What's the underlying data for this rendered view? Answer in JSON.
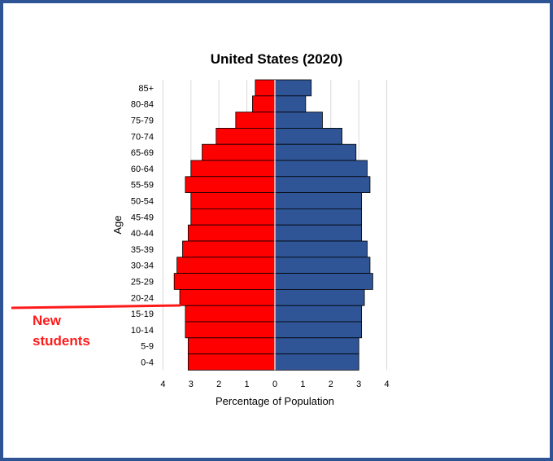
{
  "chart_data": {
    "type": "bar",
    "orientation": "horizontal",
    "title": "United States (2020)",
    "xlabel": "Percentage of Population",
    "ylabel": "Age",
    "xlim": [
      -4,
      4
    ],
    "xtick_labels": [
      "4",
      "3",
      "2",
      "1",
      "0",
      "1",
      "2",
      "3",
      "4"
    ],
    "grid": true,
    "categories": [
      "85+",
      "80-84",
      "75-79",
      "70-74",
      "65-69",
      "60-64",
      "55-59",
      "50-54",
      "45-49",
      "40-44",
      "35-39",
      "30-34",
      "25-29",
      "20-24",
      "15-19",
      "10-14",
      "5-9",
      "0-4"
    ],
    "series": [
      {
        "color": "#ff0000",
        "values": [
          0.7,
          0.8,
          1.4,
          2.1,
          2.6,
          3.0,
          3.2,
          3.0,
          3.0,
          3.1,
          3.3,
          3.5,
          3.6,
          3.4,
          3.2,
          3.2,
          3.1,
          3.1
        ]
      },
      {
        "color": "#2f5597",
        "values": [
          1.3,
          1.1,
          1.7,
          2.4,
          2.9,
          3.3,
          3.4,
          3.1,
          3.1,
          3.1,
          3.3,
          3.4,
          3.5,
          3.2,
          3.1,
          3.1,
          3.0,
          3.0
        ]
      }
    ]
  },
  "annotation": {
    "line1": "New",
    "line2": "students",
    "color": "#ff1a1a"
  }
}
